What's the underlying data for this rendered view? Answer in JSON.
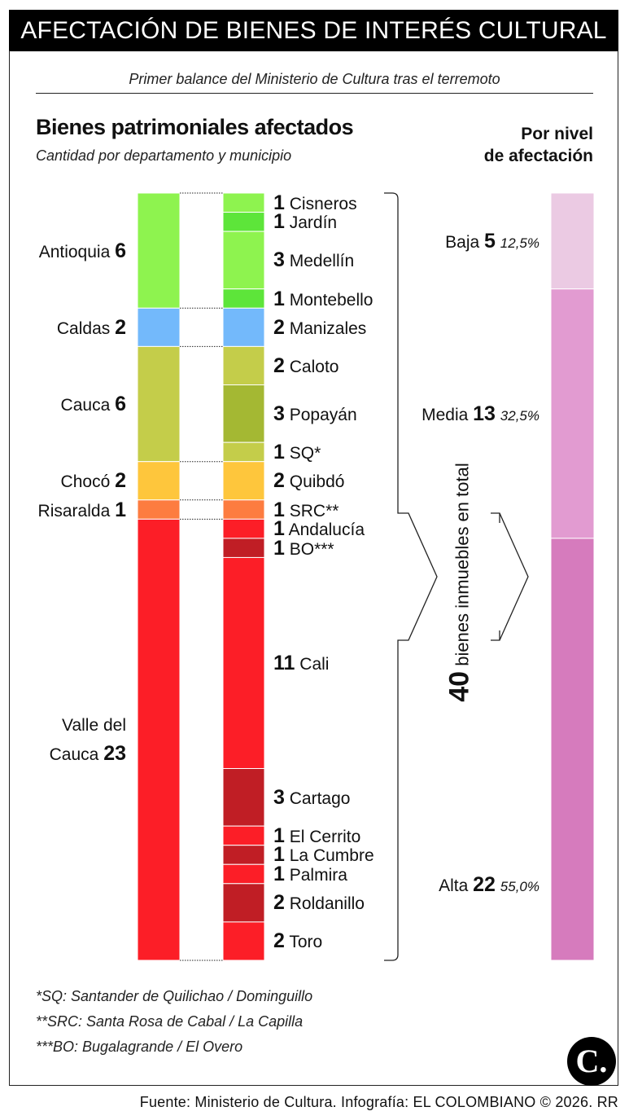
{
  "header": {
    "title": "AFECTACIÓN DE BIENES DE INTERÉS CULTURAL",
    "subtitle": "Primer balance del Ministerio de Cultura tras el terremoto"
  },
  "section": {
    "title": "Bienes patrimoniales afectados",
    "subtitle": "Cantidad por departamento y municipio",
    "level_title_line1": "Por nivel",
    "level_title_line2": "de afectación"
  },
  "chart_data": {
    "type": "bar",
    "stacked": true,
    "total": 40,
    "total_label": "bienes inmuebles en total",
    "departments": [
      {
        "name": "Antioquia",
        "value": 6,
        "color": "#8ef34f"
      },
      {
        "name": "Caldas",
        "value": 2,
        "color": "#73b9fb"
      },
      {
        "name": "Cauca",
        "value": 6,
        "color": "#c4cd4a"
      },
      {
        "name": "Chocó",
        "value": 2,
        "color": "#fec63c"
      },
      {
        "name": "Risaralda",
        "value": 1,
        "color": "#fd7c40"
      },
      {
        "name": "Valle del Cauca",
        "value": 23,
        "color": "#fc1e27"
      }
    ],
    "municipalities": [
      {
        "name": "Cisneros",
        "value": 1,
        "color": "#8ef34f"
      },
      {
        "name": "Jardín",
        "value": 1,
        "color": "#5de53a"
      },
      {
        "name": "Medellín",
        "value": 3,
        "color": "#8ef34f"
      },
      {
        "name": "Montebello",
        "value": 1,
        "color": "#5de53a"
      },
      {
        "name": "Manizales",
        "value": 2,
        "color": "#73b9fb"
      },
      {
        "name": "Caloto",
        "value": 2,
        "color": "#c4cd4a"
      },
      {
        "name": "Popayán",
        "value": 3,
        "color": "#a4b833"
      },
      {
        "name": "SQ*",
        "value": 1,
        "color": "#c4cd4a"
      },
      {
        "name": "Quibdó",
        "value": 2,
        "color": "#fec63c"
      },
      {
        "name": "SRC**",
        "value": 1,
        "color": "#fd7c40"
      },
      {
        "name": "Andalucía",
        "value": 1,
        "color": "#fc1e27"
      },
      {
        "name": "BO***",
        "value": 1,
        "color": "#c01e25"
      },
      {
        "name": "Cali",
        "value": 11,
        "color": "#fc1e27"
      },
      {
        "name": "Cartago",
        "value": 3,
        "color": "#c01e25"
      },
      {
        "name": "El Cerrito",
        "value": 1,
        "color": "#fc1e27"
      },
      {
        "name": "La Cumbre",
        "value": 1,
        "color": "#c01e25"
      },
      {
        "name": "Palmira",
        "value": 1,
        "color": "#fc1e27"
      },
      {
        "name": "Roldanillo",
        "value": 2,
        "color": "#c01e25"
      },
      {
        "name": "Toro",
        "value": 2,
        "color": "#fc1e27"
      }
    ],
    "levels": [
      {
        "name": "Baja",
        "value": 5,
        "percent": "12,5%",
        "color": "#ebcae3"
      },
      {
        "name": "Media",
        "value": 13,
        "percent": "32,5%",
        "color": "#e29bd1"
      },
      {
        "name": "Alta",
        "value": 22,
        "percent": "55,0%",
        "color": "#d67bbd"
      }
    ]
  },
  "footnotes": [
    "*SQ: Santander de Quilichao / Dominguillo",
    "**SRC: Santa Rosa de Cabal / La Capilla",
    "***BO: Bugalagrande / El Overo"
  ],
  "logo_text": "C.",
  "source": "Fuente: Ministerio de Cultura. Infografía: EL COLOMBIANO © 2026. RR"
}
